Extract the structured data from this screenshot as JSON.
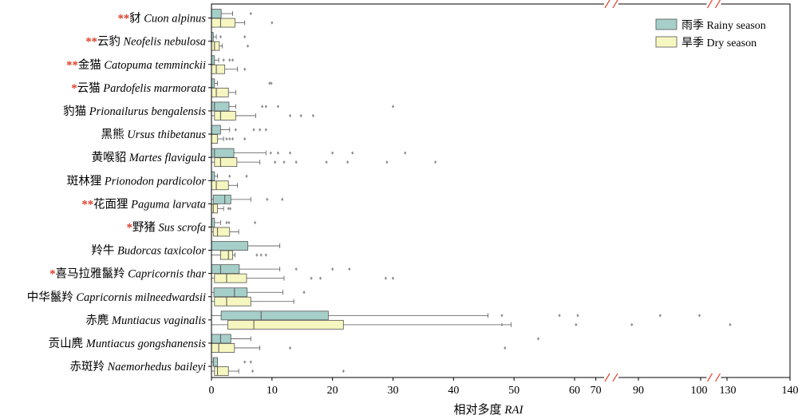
{
  "chart_data": {
    "type": "boxplot",
    "orientation": "horizontal",
    "xlabel_prefix": "相对多度",
    "xlabel_var": "RAI",
    "x_ticks": [
      0,
      10,
      20,
      30,
      40,
      50,
      60,
      70,
      90,
      100,
      130,
      140
    ],
    "x_axis_breaks": [
      [
        60,
        90
      ],
      [
        100,
        130
      ]
    ],
    "grid": false,
    "legend_position": "top-right",
    "colors": {
      "rainy": "#a6cfc9",
      "dry": "#f6f6c0",
      "stroke": "#555555",
      "outlier": "#8f8f8f",
      "star": "#e03b24",
      "break_mark": "#e03b24"
    },
    "series": [
      {
        "key": "rainy",
        "name": "雨季 Rainy season"
      },
      {
        "key": "dry",
        "name": "旱季 Dry season"
      }
    ],
    "species": [
      {
        "star": "**",
        "cn": "豺",
        "sci": "Cuon alpinus",
        "rainy": {
          "min": 0,
          "q1": 0,
          "median": 0,
          "q3": 1.6,
          "max": 3.5,
          "outliers": [
            6.5
          ]
        },
        "dry": {
          "min": 0,
          "q1": 0,
          "median": 1.5,
          "q3": 3.9,
          "max": 5.5,
          "outliers": [
            10
          ]
        }
      },
      {
        "star": "**",
        "cn": "云豹",
        "sci": "Neofelis nebulosa",
        "rainy": {
          "min": 0,
          "q1": 0,
          "median": 0,
          "q3": 0.3,
          "max": 0.8,
          "outliers": [
            1.5,
            5.5
          ]
        },
        "dry": {
          "min": 0,
          "q1": 0,
          "median": 0.5,
          "q3": 1.3,
          "max": 1.8,
          "outliers": [
            6.0
          ]
        }
      },
      {
        "star": "**",
        "cn": "金猫",
        "sci": "Catopuma temminckii",
        "rainy": {
          "min": 0,
          "q1": 0,
          "median": 0,
          "q3": 0.5,
          "max": 1.2,
          "outliers": [
            2.0,
            3.0,
            3.5
          ]
        },
        "dry": {
          "min": 0,
          "q1": 0,
          "median": 0.8,
          "q3": 2.2,
          "max": 4.3,
          "outliers": [
            5.5
          ]
        }
      },
      {
        "star": "*",
        "cn": "云猫",
        "sci": "Pardofelis marmorata",
        "rainy": {
          "min": 0,
          "q1": 0,
          "median": 0,
          "q3": 0.5,
          "max": 1.0,
          "outliers": [
            9.6,
            9.9
          ]
        },
        "dry": {
          "min": 0,
          "q1": 0,
          "median": 0.8,
          "q3": 2.8,
          "max": 4.0,
          "outliers": []
        }
      },
      {
        "star": "",
        "cn": "豹猫",
        "sci": "Prionailurus bengalensis",
        "rainy": {
          "min": 0,
          "q1": 0,
          "median": 0.5,
          "q3": 2.9,
          "max": 4.0,
          "outliers": [
            8.4,
            9.0,
            11,
            30
          ]
        },
        "dry": {
          "min": 0,
          "q1": 0.5,
          "median": 1.5,
          "q3": 4.0,
          "max": 7.3,
          "outliers": [
            13,
            14.8,
            16.8
          ]
        }
      },
      {
        "star": "",
        "cn": "黑熊",
        "sci": "Ursus thibetanus",
        "rainy": {
          "min": 0,
          "q1": 0,
          "median": 0,
          "q3": 1.5,
          "max": 3.0,
          "outliers": [
            4.0,
            7.0,
            8.0,
            9.0
          ]
        },
        "dry": {
          "min": 0,
          "q1": 0,
          "median": 0,
          "q3": 1.0,
          "max": 2.0,
          "outliers": [
            2.5,
            3.0,
            3.5,
            5.5
          ]
        }
      },
      {
        "star": "",
        "cn": "黄喉貂",
        "sci": "Martes flavigula",
        "rainy": {
          "min": 0,
          "q1": 0,
          "median": 0.5,
          "q3": 3.7,
          "max": 9.0,
          "outliers": [
            9.8,
            11,
            13,
            20,
            23.3,
            32
          ]
        },
        "dry": {
          "min": 0,
          "q1": 0.5,
          "median": 1.5,
          "q3": 4.2,
          "max": 8.0,
          "outliers": [
            10.5,
            12,
            14,
            19,
            22.5,
            29,
            37
          ]
        }
      },
      {
        "star": "",
        "cn": "斑林狸",
        "sci": "Prionodon pardicolor",
        "rainy": {
          "min": 0,
          "q1": 0,
          "median": 0,
          "q3": 0.5,
          "max": 1.0,
          "outliers": [
            3.0,
            5.8
          ]
        },
        "dry": {
          "min": 0,
          "q1": 0,
          "median": 0.8,
          "q3": 2.8,
          "max": 4.3,
          "outliers": []
        }
      },
      {
        "star": "**",
        "cn": "花面狸",
        "sci": "Paguma larvata",
        "rainy": {
          "min": 0,
          "q1": 0.3,
          "median": 2.2,
          "q3": 3.2,
          "max": 6.5,
          "outliers": [
            9.2,
            11.7
          ]
        },
        "dry": {
          "min": 0,
          "q1": 0,
          "median": 0.3,
          "q3": 1.0,
          "max": 2.0,
          "outliers": [
            2.8,
            3.1
          ]
        }
      },
      {
        "star": "*",
        "cn": "野猪",
        "sci": "Sus scrofa",
        "rainy": {
          "min": 0,
          "q1": 0,
          "median": 0,
          "q3": 0.5,
          "max": 1.5,
          "outliers": [
            2.5,
            2.9,
            7.2
          ]
        },
        "dry": {
          "min": 0,
          "q1": 0.3,
          "median": 1.0,
          "q3": 3.0,
          "max": 4.5,
          "outliers": []
        }
      },
      {
        "star": "",
        "cn": "羚牛",
        "sci": "Budorcas taxicolor",
        "rainy": {
          "min": 0,
          "q1": 0,
          "median": 0,
          "q3": 6.0,
          "max": 11.3,
          "outliers": []
        },
        "dry": {
          "min": 0,
          "q1": 1.5,
          "median": 2.8,
          "q3": 3.5,
          "max": 3.9,
          "outliers": [
            7.5,
            8.2,
            9.0
          ]
        }
      },
      {
        "star": "*",
        "cn": "喜马拉雅鬣羚",
        "sci": "Capricornis thar",
        "rainy": {
          "min": 0,
          "q1": 0,
          "median": 1.5,
          "q3": 4.6,
          "max": 11.3,
          "outliers": [
            14,
            20,
            22.8
          ]
        },
        "dry": {
          "min": 0,
          "q1": 0.5,
          "median": 2.5,
          "q3": 5.8,
          "max": 12,
          "outliers": [
            16.5,
            18,
            28.8,
            30
          ]
        }
      },
      {
        "star": "",
        "cn": "中华鬣羚",
        "sci": "Capricornis milneedwardsii",
        "rainy": {
          "min": 0,
          "q1": 0.4,
          "median": 3.8,
          "q3": 5.9,
          "max": 11.8,
          "outliers": [
            15.3
          ]
        },
        "dry": {
          "min": 0,
          "q1": 0.5,
          "median": 2.5,
          "q3": 6.5,
          "max": 13.6,
          "outliers": []
        }
      },
      {
        "star": "",
        "cn": "赤麂",
        "sci": "Muntiacus vaginalis",
        "rainy": {
          "min": 0,
          "q1": 1.6,
          "median": 8.2,
          "q3": 19.3,
          "max": 45.7,
          "outliers": [
            48,
            57.5,
            61.5,
            93.5,
            99.8
          ]
        },
        "dry": {
          "min": 0,
          "q1": 2.7,
          "median": 7.0,
          "q3": 21.8,
          "max": 49.5,
          "outliers": [
            48,
            60.7,
            86.9,
            130.5
          ]
        }
      },
      {
        "star": "",
        "cn": "贡山麂",
        "sci": "Muntiacus gongshanensis",
        "rainy": {
          "min": 0,
          "q1": 0,
          "median": 1.5,
          "q3": 3.2,
          "max": 6.5,
          "outliers": [
            54
          ]
        },
        "dry": {
          "min": 0,
          "q1": 0,
          "median": 1.2,
          "q3": 3.8,
          "max": 8.0,
          "outliers": [
            13,
            48.5
          ]
        }
      },
      {
        "star": "",
        "cn": "赤斑羚",
        "sci": "Naemorhedus baileyi",
        "rainy": {
          "min": 0,
          "q1": 0.3,
          "median": 0.3,
          "q3": 1.0,
          "max": 1.0,
          "outliers": [
            5.5,
            6.5
          ]
        },
        "dry": {
          "min": 0,
          "q1": 0.5,
          "median": 1.0,
          "q3": 2.8,
          "max": 4.5,
          "outliers": [
            6.8,
            21.8
          ]
        }
      }
    ]
  }
}
